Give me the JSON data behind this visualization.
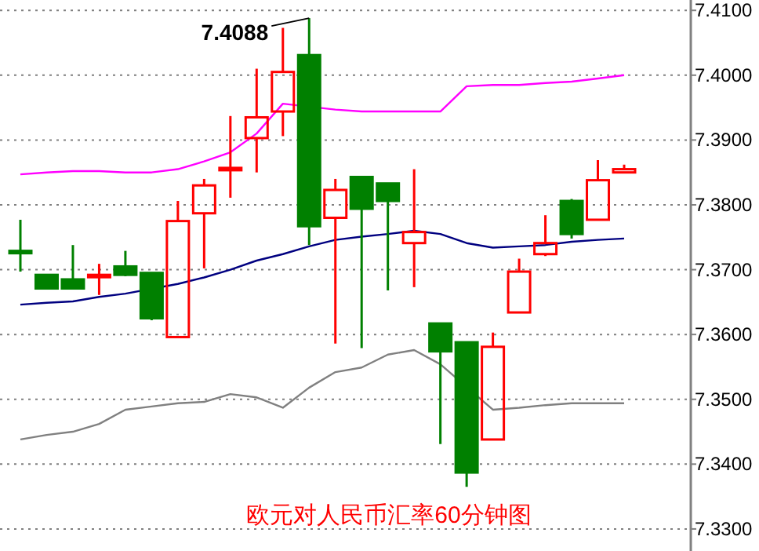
{
  "chart_data": {
    "type": "candlestick",
    "title": "欧元对人民币汇率60分钟图",
    "categories": [
      null,
      null,
      null,
      null,
      null,
      null,
      null,
      null,
      null,
      null,
      null,
      null,
      null,
      null,
      null,
      null,
      null,
      null,
      null,
      null,
      null,
      null,
      null,
      null
    ],
    "ohlc": [
      [
        7.3729,
        7.3777,
        7.3697,
        7.3727
      ],
      [
        7.3692,
        7.3692,
        7.3671,
        7.3671
      ],
      [
        7.3685,
        7.3738,
        7.3671,
        7.3671
      ],
      [
        7.3691,
        7.3709,
        7.3661,
        7.3692
      ],
      [
        7.3705,
        7.3729,
        7.369,
        7.3692
      ],
      [
        7.3695,
        7.3695,
        7.3622,
        7.3625
      ],
      [
        7.3596,
        7.3806,
        7.3596,
        7.3775
      ],
      [
        7.3787,
        7.384,
        7.3702,
        7.383
      ],
      [
        7.3856,
        7.3937,
        7.3811,
        7.3857
      ],
      [
        7.3903,
        7.401,
        7.385,
        7.3935
      ],
      [
        7.3944,
        7.4073,
        7.3906,
        7.4005
      ],
      [
        7.4031,
        7.4088,
        7.3738,
        7.3767
      ],
      [
        7.378,
        7.384,
        7.3586,
        7.3823
      ],
      [
        7.3843,
        7.3843,
        7.3579,
        7.3794
      ],
      [
        7.3833,
        7.3833,
        7.3668,
        7.3806
      ],
      [
        7.3741,
        7.3855,
        7.3673,
        7.3758
      ],
      [
        7.3617,
        7.3617,
        7.3431,
        7.3574
      ],
      [
        7.3588,
        7.3588,
        7.3365,
        7.3387
      ],
      [
        7.3438,
        7.3603,
        7.3438,
        7.3581
      ],
      [
        7.3634,
        7.3717,
        7.3634,
        7.3697
      ],
      [
        7.3724,
        7.3784,
        7.3721,
        7.3741
      ],
      [
        7.3806,
        7.3809,
        7.3748,
        7.3755
      ],
      [
        7.3777,
        7.3869,
        7.3777,
        7.3838
      ],
      [
        7.385,
        7.3862,
        7.385,
        7.3855
      ]
    ],
    "colors": [
      "#008000",
      "#008000",
      "#008000",
      "#ff0000",
      "#008000",
      "#008000",
      "#ff0000",
      "#ff0000",
      "#ff0000",
      "#ff0000",
      "#ff0000",
      "#008000",
      "#ff0000",
      "#008000",
      "#008000",
      "#ff0000",
      "#008000",
      "#008000",
      "#ff0000",
      "#ff0000",
      "#ff0000",
      "#008000",
      "#ff0000",
      "#ff0000"
    ],
    "series": [
      {
        "type": "line",
        "color": "#ff00ff",
        "values": [
          7.3847,
          7.385,
          7.3852,
          7.3852,
          7.385,
          7.385,
          7.3855,
          7.3867,
          7.3881,
          7.391,
          7.3956,
          null,
          7.3947,
          7.3944,
          7.3944,
          7.3944,
          7.3944,
          7.3983,
          7.3985,
          7.3985,
          7.3988,
          7.399,
          7.3995,
          7.4
        ]
      },
      {
        "type": "line",
        "color": "#000080",
        "values": [
          7.3646,
          7.3649,
          7.3651,
          7.3658,
          7.3663,
          null,
          7.3678,
          7.3688,
          7.37,
          7.3714,
          7.3724,
          7.3736,
          7.3746,
          7.3751,
          7.3755,
          7.376,
          7.3755,
          7.3741,
          7.3734,
          7.3736,
          7.3738,
          7.3743,
          7.3746,
          7.3748
        ]
      },
      {
        "type": "line",
        "color": "#808080",
        "values": [
          7.3438,
          7.3445,
          7.345,
          7.3462,
          7.3484,
          7.3489,
          7.3494,
          7.3496,
          7.3508,
          7.3503,
          7.3487,
          7.3518,
          7.3542,
          7.3549,
          7.3569,
          7.3576,
          7.3554,
          null,
          7.3484,
          7.3487,
          7.3491,
          7.3494,
          7.3494,
          7.3494
        ]
      }
    ],
    "ylim": [
      7.3266,
      7.4116
    ],
    "yticks": [
      {
        "value": 7.33,
        "label": "7.3300"
      },
      {
        "value": 7.34,
        "label": "7.3400"
      },
      {
        "value": 7.35,
        "label": "7.3500"
      },
      {
        "value": 7.36,
        "label": "7.3600"
      },
      {
        "value": 7.37,
        "label": "7.3700"
      },
      {
        "value": 7.38,
        "label": "7.3800"
      },
      {
        "value": 7.39,
        "label": "7.3900"
      },
      {
        "value": 7.4,
        "label": "7.4000"
      },
      {
        "value": 7.41,
        "label": "7.4100"
      }
    ],
    "grid": "y",
    "tick_labels": "y",
    "annotations": [
      "7.4088"
    ]
  }
}
